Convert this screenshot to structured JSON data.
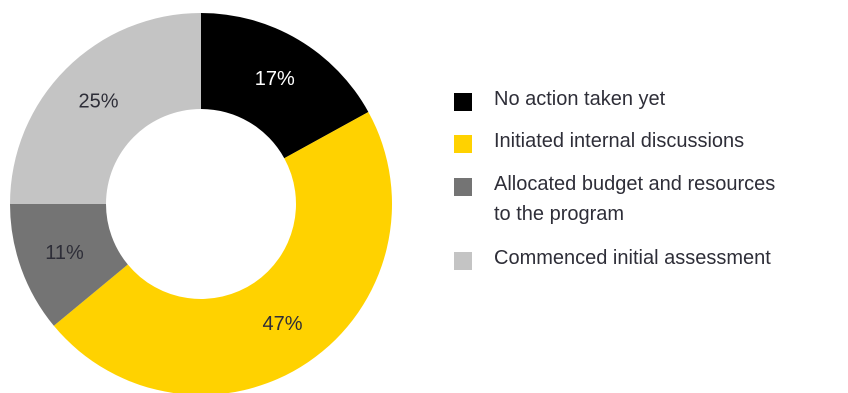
{
  "chart_data": {
    "type": "pie",
    "donut": true,
    "categories": [
      "No action taken yet",
      "Initiated internal discussions",
      "Allocated budget and resources to the program",
      "Commenced initial assessment"
    ],
    "legend_lines": [
      [
        "No action taken yet"
      ],
      [
        "Initiated internal discussions"
      ],
      [
        "Allocated budget and resources",
        "to the program"
      ],
      [
        "Commenced initial assessment"
      ]
    ],
    "values": [
      17,
      47,
      11,
      25
    ],
    "labels": [
      "17%",
      "47%",
      "11%",
      "25%"
    ],
    "colors": [
      "#000000",
      "#ffd200",
      "#747474",
      "#c4c4c4"
    ],
    "label_colors": [
      "#ffffff",
      "#2e2e38",
      "#2e2e38",
      "#2e2e38"
    ],
    "legend_position": "right"
  }
}
